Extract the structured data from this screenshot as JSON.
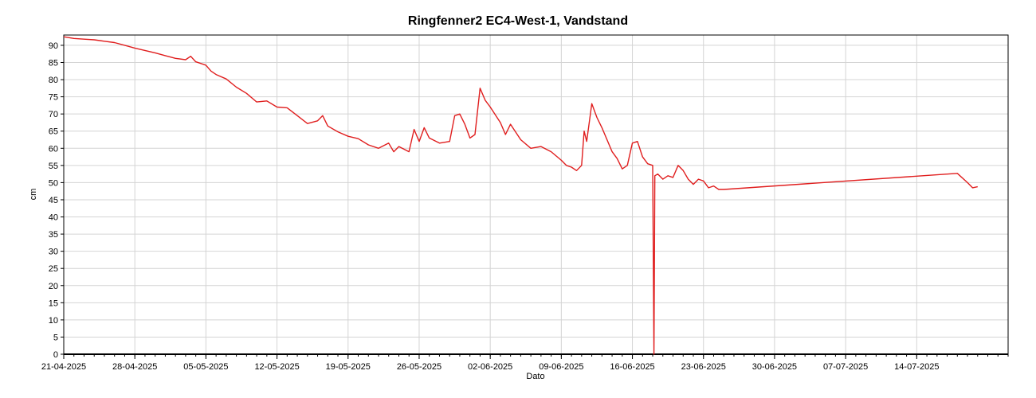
{
  "chart_data": {
    "type": "line",
    "title": "Ringfenner2 EC4-West-1, Vandstand",
    "xlabel": "Dato",
    "ylabel": "cm",
    "ylim": [
      0,
      93
    ],
    "xlim": [
      "2025-04-21",
      "2025-07-23"
    ],
    "grid": true,
    "legend": "none",
    "y_ticks": [
      0,
      5,
      10,
      15,
      20,
      25,
      30,
      35,
      40,
      45,
      50,
      55,
      60,
      65,
      70,
      75,
      80,
      85,
      90
    ],
    "x_ticks": [
      "21-04-2025",
      "28-04-2025",
      "05-05-2025",
      "12-05-2025",
      "19-05-2025",
      "26-05-2025",
      "02-06-2025",
      "09-06-2025",
      "16-06-2025",
      "23-06-2025",
      "30-06-2025",
      "07-07-2025",
      "14-07-2025"
    ],
    "colors": {
      "line": "#e01e1e",
      "grid": "#d4d4d4",
      "axis": "#000000"
    },
    "series": [
      {
        "values": [
          [
            "2025-04-21",
            92.5
          ],
          [
            "2025-04-22",
            92.0
          ],
          [
            "2025-04-23",
            91.8
          ],
          [
            "2025-04-24",
            91.6
          ],
          [
            "2025-04-25",
            91.2
          ],
          [
            "2025-04-26",
            90.8
          ],
          [
            "2025-04-27",
            90.0
          ],
          [
            "2025-04-28",
            89.2
          ],
          [
            "2025-04-29",
            88.5
          ],
          [
            "2025-04-30",
            87.8
          ],
          [
            "2025-05-01",
            87.0
          ],
          [
            "2025-05-02",
            86.2
          ],
          [
            "2025-05-03",
            85.8
          ],
          [
            "2025-05-03 12:00",
            86.8
          ],
          [
            "2025-05-04",
            85.2
          ],
          [
            "2025-05-05",
            84.2
          ],
          [
            "2025-05-05 12:00",
            82.5
          ],
          [
            "2025-05-06",
            81.5
          ],
          [
            "2025-05-07",
            80.2
          ],
          [
            "2025-05-08",
            77.8
          ],
          [
            "2025-05-09",
            76.0
          ],
          [
            "2025-05-10",
            73.5
          ],
          [
            "2025-05-11",
            73.8
          ],
          [
            "2025-05-12",
            72.0
          ],
          [
            "2025-05-13",
            71.8
          ],
          [
            "2025-05-14",
            69.5
          ],
          [
            "2025-05-15",
            67.2
          ],
          [
            "2025-05-16",
            68.0
          ],
          [
            "2025-05-16 12:00",
            69.5
          ],
          [
            "2025-05-17",
            66.5
          ],
          [
            "2025-05-18",
            64.8
          ],
          [
            "2025-05-19",
            63.5
          ],
          [
            "2025-05-20",
            62.8
          ],
          [
            "2025-05-21",
            61.0
          ],
          [
            "2025-05-22",
            60.0
          ],
          [
            "2025-05-23",
            61.5
          ],
          [
            "2025-05-23 12:00",
            59.0
          ],
          [
            "2025-05-24",
            60.5
          ],
          [
            "2025-05-25",
            59.0
          ],
          [
            "2025-05-25 12:00",
            65.5
          ],
          [
            "2025-05-26",
            62.0
          ],
          [
            "2025-05-26 12:00",
            66.0
          ],
          [
            "2025-05-27",
            63.0
          ],
          [
            "2025-05-28",
            61.5
          ],
          [
            "2025-05-29",
            62.0
          ],
          [
            "2025-05-29 12:00",
            69.5
          ],
          [
            "2025-05-30",
            70.0
          ],
          [
            "2025-05-30 12:00",
            67.0
          ],
          [
            "2025-05-31",
            63.0
          ],
          [
            "2025-05-31 12:00",
            64.0
          ],
          [
            "2025-06-01",
            77.5
          ],
          [
            "2025-06-01 12:00",
            74.0
          ],
          [
            "2025-06-02",
            72.0
          ],
          [
            "2025-06-03",
            67.5
          ],
          [
            "2025-06-03 12:00",
            64.0
          ],
          [
            "2025-06-04",
            67.0
          ],
          [
            "2025-06-05",
            62.5
          ],
          [
            "2025-06-06",
            60.0
          ],
          [
            "2025-06-07",
            60.5
          ],
          [
            "2025-06-08",
            59.0
          ],
          [
            "2025-06-09",
            56.5
          ],
          [
            "2025-06-09 12:00",
            55.0
          ],
          [
            "2025-06-10",
            54.5
          ],
          [
            "2025-06-10 12:00",
            53.5
          ],
          [
            "2025-06-11",
            55.0
          ],
          [
            "2025-06-11 06:00",
            65.0
          ],
          [
            "2025-06-11 12:00",
            62.0
          ],
          [
            "2025-06-12",
            73.0
          ],
          [
            "2025-06-12 12:00",
            69.0
          ],
          [
            "2025-06-13",
            66.0
          ],
          [
            "2025-06-13 12:00",
            62.5
          ],
          [
            "2025-06-14",
            59.0
          ],
          [
            "2025-06-14 12:00",
            57.0
          ],
          [
            "2025-06-15",
            54.0
          ],
          [
            "2025-06-15 12:00",
            55.0
          ],
          [
            "2025-06-16",
            61.5
          ],
          [
            "2025-06-16 12:00",
            62.0
          ],
          [
            "2025-06-17",
            57.5
          ],
          [
            "2025-06-17 12:00",
            55.5
          ],
          [
            "2025-06-18",
            55.0
          ],
          [
            "2025-06-18 03:00",
            0.0
          ],
          [
            "2025-06-18 05:00",
            52.0
          ],
          [
            "2025-06-18 12:00",
            52.5
          ],
          [
            "2025-06-19",
            51.0
          ],
          [
            "2025-06-19 12:00",
            52.0
          ],
          [
            "2025-06-20",
            51.5
          ],
          [
            "2025-06-20 12:00",
            55.0
          ],
          [
            "2025-06-21",
            53.5
          ],
          [
            "2025-06-21 12:00",
            51.0
          ],
          [
            "2025-06-22",
            49.5
          ],
          [
            "2025-06-22 12:00",
            51.0
          ],
          [
            "2025-06-23",
            50.5
          ],
          [
            "2025-06-23 12:00",
            48.5
          ],
          [
            "2025-06-24",
            49.0
          ],
          [
            "2025-06-24 12:00",
            48.0
          ],
          [
            "2025-06-25",
            48.0
          ],
          [
            "2025-07-18",
            52.7
          ],
          [
            "2025-07-19",
            50.0
          ],
          [
            "2025-07-19 12:00",
            48.5
          ],
          [
            "2025-07-20",
            48.8
          ]
        ]
      }
    ]
  }
}
